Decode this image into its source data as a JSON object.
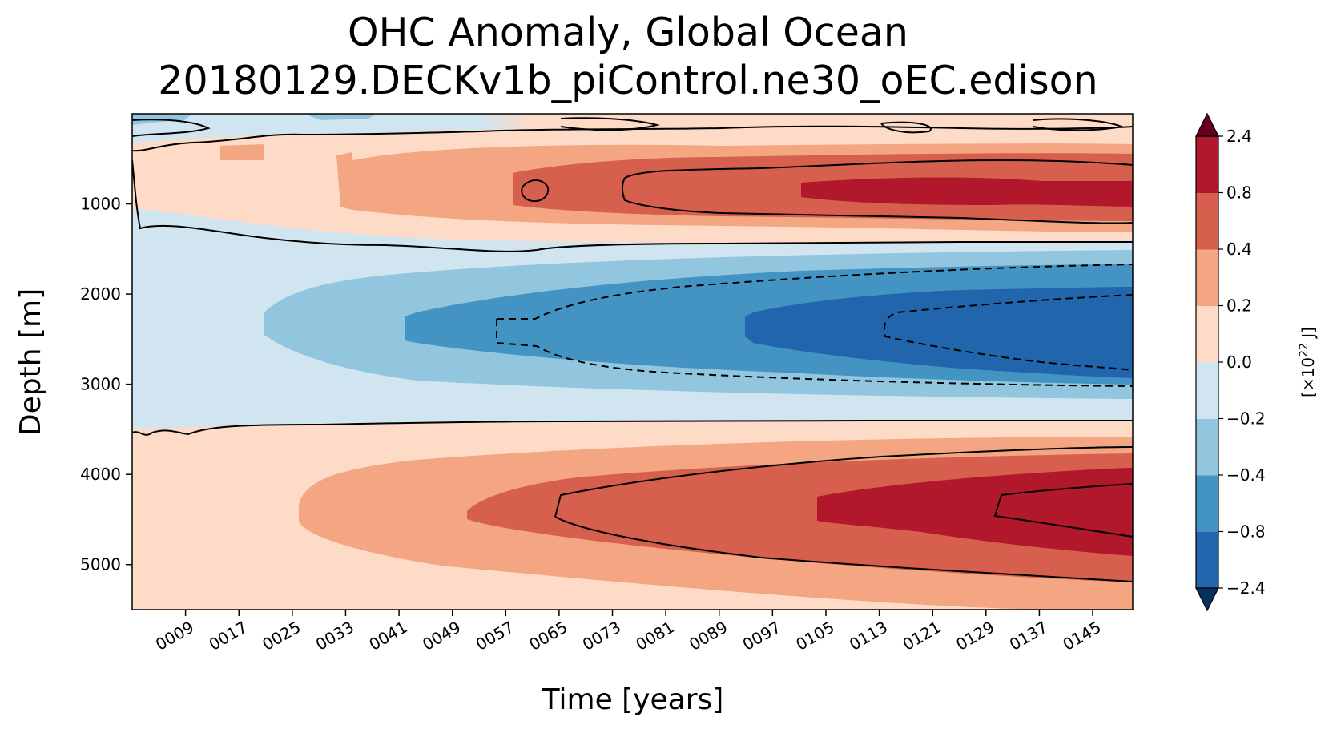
{
  "chart_data": {
    "type": "heatmap",
    "subtype": "filled-contour",
    "title": "OHC Anomaly, Global Ocean",
    "subtitle": "20180129.DECKv1b_piControl.ne30_oEC.edison",
    "xlabel": "Time [years]",
    "ylabel": "Depth [m]",
    "x_ticks": [
      "0009",
      "0017",
      "0025",
      "0033",
      "0041",
      "0049",
      "0057",
      "0065",
      "0073",
      "0081",
      "0089",
      "0097",
      "0105",
      "0113",
      "0121",
      "0129",
      "0137",
      "0145"
    ],
    "y_ticks": [
      "1000",
      "2000",
      "3000",
      "4000",
      "5000"
    ],
    "xlim": [
      1,
      151
    ],
    "ylim": [
      5500,
      0
    ],
    "colorbar": {
      "label": "[×10",
      "label_exp": "22",
      "label_unit": " J]",
      "levels": [
        -2.4,
        -0.8,
        -0.4,
        -0.2,
        0.0,
        0.2,
        0.4,
        0.8,
        2.4
      ],
      "tick_labels": [
        "2.4",
        "0.8",
        "0.4",
        "0.2",
        "0.0",
        "−0.2",
        "−0.4",
        "−0.8",
        "−2.4"
      ],
      "colors": [
        "#2166ac",
        "#4393c3",
        "#92c5de",
        "#d1e5f0",
        "#fddbc7",
        "#f4a582",
        "#d6604d",
        "#b2182b"
      ],
      "under_color": "#053061",
      "over_color": "#67001f",
      "extend": "both"
    },
    "regions": [
      {
        "depth": "0-300 m",
        "description": "noisy near-surface, mostly slight positive anomaly",
        "range": [
          0.0,
          0.2
        ]
      },
      {
        "depth": "500-1200 m",
        "description": "warming layer, strengthening with time",
        "max_class": "0.8 to 2.4"
      },
      {
        "depth": "1500-3400 m",
        "description": "cooling layer centered near 2400 m, strengthening with time",
        "min_class": "-2.4 to -0.8"
      },
      {
        "depth": "3600-5500 m",
        "description": "deep warming centered near 4400 m, strengthening with time",
        "max_class": "0.8 to 2.4"
      }
    ],
    "contour_lines": [
      {
        "level": 0.0,
        "style": "solid"
      },
      {
        "level": -0.8,
        "style": "dashed"
      },
      {
        "level": 0.8,
        "style": "solid"
      },
      {
        "level": 2.4,
        "style": "solid"
      }
    ],
    "grid": false
  }
}
